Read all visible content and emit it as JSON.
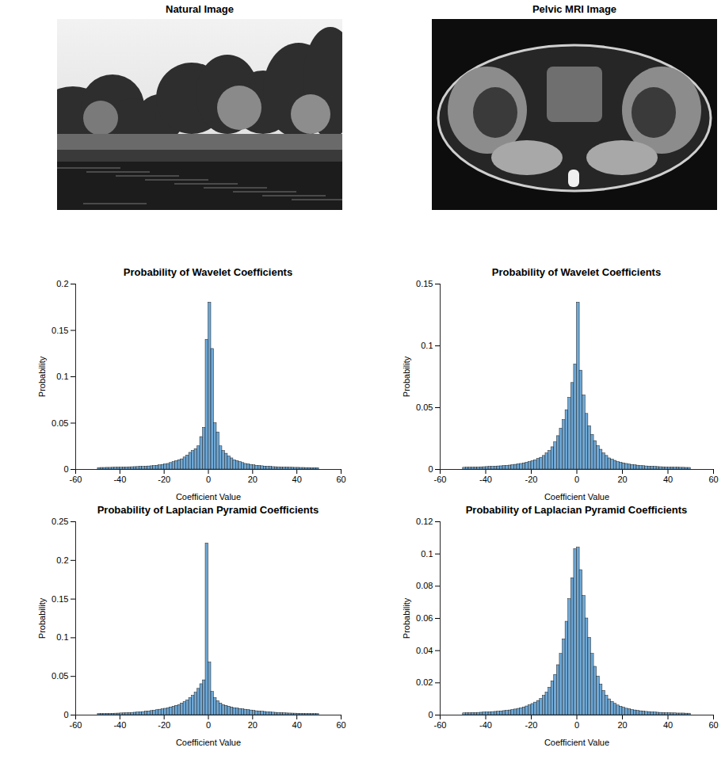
{
  "images": [
    {
      "title": "Natural Image"
    },
    {
      "title": "Pelvic MRI Image"
    }
  ],
  "chart_data": [
    {
      "type": "histogram",
      "title": "Probability of Wavelet Coefficients",
      "x_label": "Coefficient Value",
      "y_label": "Probability",
      "color": "#6ea8d6",
      "bins": [
        -50,
        -48.75,
        -47.5,
        -46.25,
        -45,
        -43.75,
        -42.5,
        -41.25,
        -40,
        -38.75,
        -37.5,
        -36.25,
        -35,
        -33.75,
        -32.5,
        -31.25,
        -30,
        -28.75,
        -27.5,
        -26.25,
        -25,
        -23.75,
        -22.5,
        -21.25,
        -20,
        -18.75,
        -17.5,
        -16.25,
        -15,
        -13.75,
        -12.5,
        -11.25,
        -10,
        -8.75,
        -7.5,
        -6.25,
        -5,
        -3.75,
        -2.5,
        -1.25,
        0,
        1.25,
        2.5,
        3.75,
        5,
        6.25,
        7.5,
        8.75,
        10,
        11.25,
        12.5,
        13.75,
        15,
        16.25,
        17.5,
        18.75,
        20,
        21.25,
        22.5,
        23.75,
        25,
        26.25,
        27.5,
        28.75,
        30,
        31.25,
        32.5,
        33.75,
        35,
        36.25,
        37.5,
        38.75,
        40,
        41.25,
        42.5,
        43.75,
        45,
        46.25,
        47.5,
        48.75,
        50
      ],
      "values": [
        0.0016,
        0.0017,
        0.0017,
        0.0018,
        0.0018,
        0.0019,
        0.002,
        0.002,
        0.0021,
        0.0022,
        0.0023,
        0.0024,
        0.0025,
        0.0026,
        0.0027,
        0.0028,
        0.0029,
        0.003,
        0.0033,
        0.0035,
        0.0038,
        0.004,
        0.0045,
        0.005,
        0.0055,
        0.006,
        0.007,
        0.008,
        0.009,
        0.01,
        0.011,
        0.013,
        0.015,
        0.018,
        0.02,
        0.022,
        0.025,
        0.035,
        0.045,
        0.14,
        0.18,
        0.13,
        0.05,
        0.04,
        0.025,
        0.02,
        0.017,
        0.014,
        0.012,
        0.01,
        0.009,
        0.008,
        0.007,
        0.006,
        0.0055,
        0.005,
        0.0045,
        0.004,
        0.0038,
        0.0035,
        0.0032,
        0.003,
        0.0028,
        0.0026,
        0.0025,
        0.0024,
        0.0023,
        0.0022,
        0.0021,
        0.002,
        0.0019,
        0.0018,
        0.0018,
        0.0017,
        0.0017,
        0.0016,
        0.0016,
        0.0015,
        0.0015,
        0.0015
      ],
      "xlim": [
        -60,
        60
      ],
      "xticks": [
        -60,
        -40,
        -20,
        0,
        20,
        40,
        60
      ],
      "ylim": [
        0,
        0.2
      ],
      "yticks": [
        0,
        0.05,
        0.1,
        0.15,
        0.2
      ]
    },
    {
      "type": "histogram",
      "title": "Probability of Wavelet Coefficients",
      "x_label": "Coefficient Value",
      "y_label": "Probability",
      "color": "#6ea8d6",
      "bins": [
        -50,
        -48.75,
        -47.5,
        -46.25,
        -45,
        -43.75,
        -42.5,
        -41.25,
        -40,
        -38.75,
        -37.5,
        -36.25,
        -35,
        -33.75,
        -32.5,
        -31.25,
        -30,
        -28.75,
        -27.5,
        -26.25,
        -25,
        -23.75,
        -22.5,
        -21.25,
        -20,
        -18.75,
        -17.5,
        -16.25,
        -15,
        -13.75,
        -12.5,
        -11.25,
        -10,
        -8.75,
        -7.5,
        -6.25,
        -5,
        -3.75,
        -2.5,
        -1.25,
        0,
        1.25,
        2.5,
        3.75,
        5,
        6.25,
        7.5,
        8.75,
        10,
        11.25,
        12.5,
        13.75,
        15,
        16.25,
        17.5,
        18.75,
        20,
        21.25,
        22.5,
        23.75,
        25,
        26.25,
        27.5,
        28.75,
        30,
        31.25,
        32.5,
        33.75,
        35,
        36.25,
        37.5,
        38.75,
        40,
        41.25,
        42.5,
        43.75,
        45,
        46.25,
        47.5,
        48.75,
        50
      ],
      "values": [
        0.0014,
        0.0015,
        0.0015,
        0.0016,
        0.0016,
        0.0017,
        0.0018,
        0.0019,
        0.002,
        0.0021,
        0.0022,
        0.0023,
        0.0025,
        0.0026,
        0.0028,
        0.003,
        0.0032,
        0.0035,
        0.0038,
        0.0042,
        0.0045,
        0.005,
        0.0055,
        0.006,
        0.0068,
        0.0075,
        0.0085,
        0.0095,
        0.011,
        0.013,
        0.015,
        0.018,
        0.022,
        0.027,
        0.033,
        0.04,
        0.048,
        0.058,
        0.07,
        0.085,
        0.135,
        0.08,
        0.06,
        0.045,
        0.035,
        0.028,
        0.023,
        0.019,
        0.016,
        0.013,
        0.011,
        0.009,
        0.008,
        0.007,
        0.006,
        0.0055,
        0.005,
        0.0045,
        0.004,
        0.0037,
        0.0034,
        0.0031,
        0.0029,
        0.0027,
        0.0025,
        0.0023,
        0.0022,
        0.0021,
        0.002,
        0.0019,
        0.0018,
        0.0017,
        0.0016,
        0.0016,
        0.0015,
        0.0015,
        0.0014,
        0.0014,
        0.0013,
        0.0013
      ],
      "xlim": [
        -60,
        60
      ],
      "xticks": [
        -60,
        -40,
        -20,
        0,
        20,
        40,
        60
      ],
      "ylim": [
        0,
        0.15
      ],
      "yticks": [
        0,
        0.05,
        0.1,
        0.15
      ]
    },
    {
      "type": "histogram",
      "title": "Probability of Laplacian Pyramid Coefficients",
      "x_label": "Coefficient Value",
      "y_label": "Probability",
      "color": "#6ea8d6",
      "bins": [
        -50,
        -48.75,
        -47.5,
        -46.25,
        -45,
        -43.75,
        -42.5,
        -41.25,
        -40,
        -38.75,
        -37.5,
        -36.25,
        -35,
        -33.75,
        -32.5,
        -31.25,
        -30,
        -28.75,
        -27.5,
        -26.25,
        -25,
        -23.75,
        -22.5,
        -21.25,
        -20,
        -18.75,
        -17.5,
        -16.25,
        -15,
        -13.75,
        -12.5,
        -11.25,
        -10,
        -8.75,
        -7.5,
        -6.25,
        -5,
        -3.75,
        -2.5,
        -1.25,
        0,
        1.25,
        2.5,
        3.75,
        5,
        6.25,
        7.5,
        8.75,
        10,
        11.25,
        12.5,
        13.75,
        15,
        16.25,
        17.5,
        18.75,
        20,
        21.25,
        22.5,
        23.75,
        25,
        26.25,
        27.5,
        28.75,
        30,
        31.25,
        32.5,
        33.75,
        35,
        36.25,
        37.5,
        38.75,
        40,
        41.25,
        42.5,
        43.75,
        45,
        46.25,
        47.5,
        48.75,
        50
      ],
      "values": [
        0.0014,
        0.0015,
        0.0015,
        0.0016,
        0.0017,
        0.0018,
        0.0019,
        0.002,
        0.0022,
        0.0023,
        0.0025,
        0.0027,
        0.0029,
        0.0031,
        0.0034,
        0.0037,
        0.004,
        0.0044,
        0.0048,
        0.0053,
        0.0058,
        0.0064,
        0.007,
        0.0075,
        0.0082,
        0.009,
        0.01,
        0.011,
        0.012,
        0.013,
        0.015,
        0.017,
        0.019,
        0.022,
        0.025,
        0.029,
        0.034,
        0.04,
        0.045,
        0.222,
        0.068,
        0.03,
        0.022,
        0.018,
        0.015,
        0.013,
        0.012,
        0.011,
        0.01,
        0.009,
        0.0085,
        0.008,
        0.0075,
        0.007,
        0.0065,
        0.006,
        0.0055,
        0.005,
        0.0047,
        0.0044,
        0.0041,
        0.0038,
        0.0035,
        0.0032,
        0.003,
        0.0028,
        0.0026,
        0.0024,
        0.0022,
        0.0021,
        0.002,
        0.0019,
        0.0018,
        0.0017,
        0.0016,
        0.0015,
        0.0014,
        0.0014,
        0.0013,
        0.0013
      ],
      "xlim": [
        -60,
        60
      ],
      "xticks": [
        -60,
        -40,
        -20,
        0,
        20,
        40,
        60
      ],
      "ylim": [
        0,
        0.25
      ],
      "yticks": [
        0,
        0.05,
        0.1,
        0.15,
        0.2,
        0.25
      ]
    },
    {
      "type": "histogram",
      "title": "Probability of Laplacian Pyramid Coefficients",
      "x_label": "Coefficient Value",
      "y_label": "Probability",
      "color": "#6ea8d6",
      "bins": [
        -50,
        -48.75,
        -47.5,
        -46.25,
        -45,
        -43.75,
        -42.5,
        -41.25,
        -40,
        -38.75,
        -37.5,
        -36.25,
        -35,
        -33.75,
        -32.5,
        -31.25,
        -30,
        -28.75,
        -27.5,
        -26.25,
        -25,
        -23.75,
        -22.5,
        -21.25,
        -20,
        -18.75,
        -17.5,
        -16.25,
        -15,
        -13.75,
        -12.5,
        -11.25,
        -10,
        -8.75,
        -7.5,
        -6.25,
        -5,
        -3.75,
        -2.5,
        -1.25,
        0,
        1.25,
        2.5,
        3.75,
        5,
        6.25,
        7.5,
        8.75,
        10,
        11.25,
        12.5,
        13.75,
        15,
        16.25,
        17.5,
        18.75,
        20,
        21.25,
        22.5,
        23.75,
        25,
        26.25,
        27.5,
        28.75,
        30,
        31.25,
        32.5,
        33.75,
        35,
        36.25,
        37.5,
        38.75,
        40,
        41.25,
        42.5,
        43.75,
        45,
        46.25,
        47.5,
        48.75,
        50
      ],
      "values": [
        0.0011,
        0.0012,
        0.0012,
        0.0013,
        0.0013,
        0.0014,
        0.0015,
        0.0016,
        0.0017,
        0.0018,
        0.0019,
        0.002,
        0.0021,
        0.0023,
        0.0025,
        0.0027,
        0.0029,
        0.0032,
        0.0035,
        0.0039,
        0.0043,
        0.0048,
        0.0054,
        0.0061,
        0.0069,
        0.0078,
        0.0088,
        0.01,
        0.012,
        0.014,
        0.017,
        0.021,
        0.025,
        0.031,
        0.038,
        0.047,
        0.058,
        0.072,
        0.085,
        0.103,
        0.104,
        0.09,
        0.074,
        0.06,
        0.048,
        0.038,
        0.03,
        0.024,
        0.019,
        0.015,
        0.012,
        0.0098,
        0.0082,
        0.007,
        0.006,
        0.0052,
        0.0046,
        0.004,
        0.0036,
        0.0032,
        0.0029,
        0.0026,
        0.0024,
        0.0022,
        0.002,
        0.0019,
        0.0017,
        0.0016,
        0.0015,
        0.0014,
        0.0013,
        0.0012,
        0.0012,
        0.0011,
        0.0011,
        0.001,
        0.001,
        0.001,
        0.0009,
        0.0009
      ],
      "xlim": [
        -60,
        60
      ],
      "xticks": [
        -60,
        -40,
        -20,
        0,
        20,
        40,
        60
      ],
      "ylim": [
        0,
        0.12
      ],
      "yticks": [
        0,
        0.02,
        0.04,
        0.06,
        0.08,
        0.1,
        0.12
      ]
    }
  ]
}
